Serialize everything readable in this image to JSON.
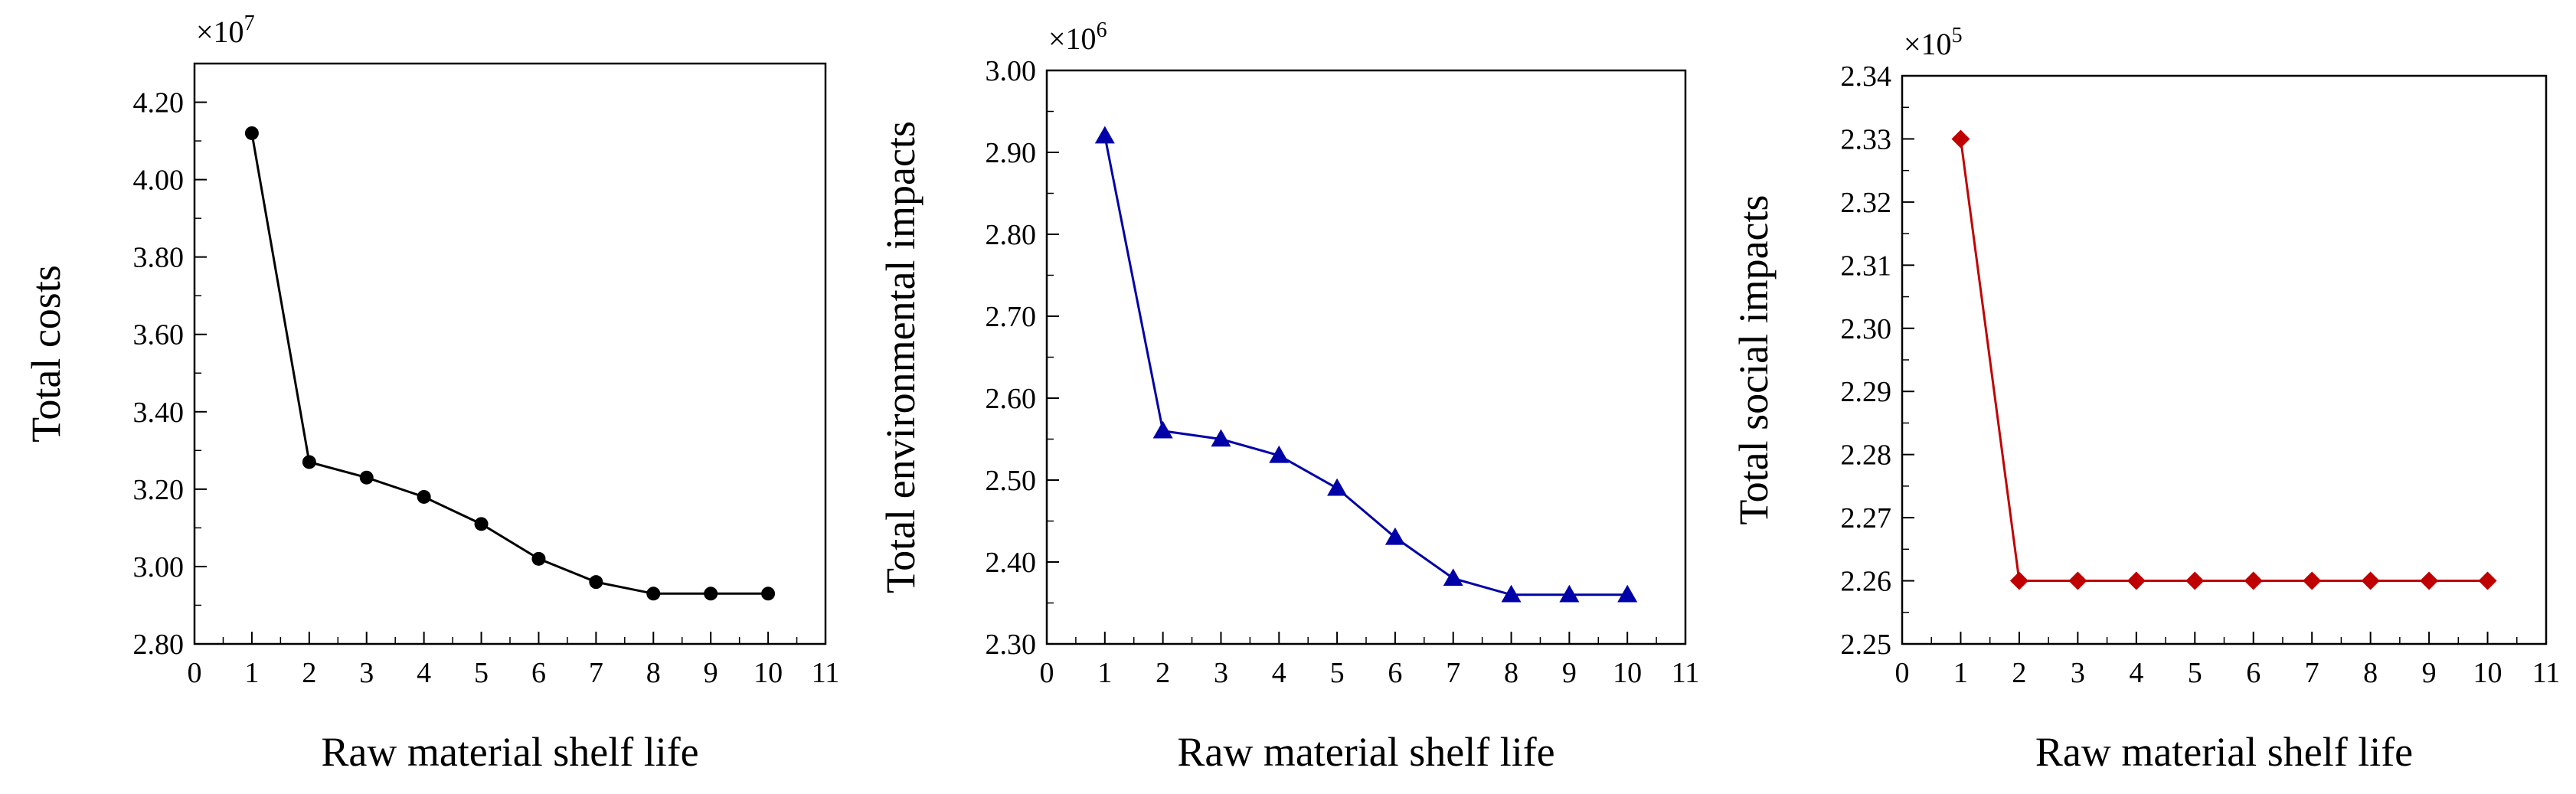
{
  "chart_data": [
    {
      "type": "line",
      "title": "",
      "xlabel": "Raw material shelf life",
      "ylabel": "Total costs",
      "multiplier": {
        "base": "×10",
        "exponent": "7"
      },
      "x": [
        1,
        2,
        3,
        4,
        5,
        6,
        7,
        8,
        9,
        10
      ],
      "series": [
        {
          "name": "Total costs",
          "color": "#000000",
          "marker": "circle",
          "values": [
            4.12,
            3.27,
            3.23,
            3.18,
            3.11,
            3.02,
            2.96,
            2.93,
            2.93,
            2.93
          ]
        }
      ],
      "xlim": [
        0,
        11
      ],
      "ylim": [
        2.8,
        4.3
      ],
      "xticks": [
        0,
        1,
        2,
        3,
        4,
        5,
        6,
        7,
        8,
        9,
        10,
        11
      ],
      "xtick_labels": [
        "0",
        "1",
        "2",
        "3",
        "4",
        "5",
        "6",
        "7",
        "8",
        "9",
        "10",
        "11"
      ],
      "yticks": [
        2.8,
        3.0,
        3.2,
        3.4,
        3.6,
        3.8,
        4.0,
        4.2
      ],
      "ytick_labels": [
        "2.80",
        "3.00",
        "3.20",
        "3.40",
        "3.60",
        "3.80",
        "4.00",
        "4.20"
      ],
      "ytick_minor_step": 0.1
    },
    {
      "type": "line",
      "title": "",
      "xlabel": "Raw material shelf life",
      "ylabel": "Total environmental impacts",
      "multiplier": {
        "base": "×10",
        "exponent": "6"
      },
      "x": [
        1,
        2,
        3,
        4,
        5,
        6,
        7,
        8,
        9,
        10
      ],
      "series": [
        {
          "name": "Total environmental impacts",
          "color": "#0000a8",
          "marker": "triangle",
          "values": [
            2.92,
            2.56,
            2.55,
            2.53,
            2.49,
            2.43,
            2.38,
            2.36,
            2.36,
            2.36
          ]
        }
      ],
      "xlim": [
        0,
        11
      ],
      "ylim": [
        2.3,
        3.0
      ],
      "xticks": [
        0,
        1,
        2,
        3,
        4,
        5,
        6,
        7,
        8,
        9,
        10,
        11
      ],
      "xtick_labels": [
        "0",
        "1",
        "2",
        "3",
        "4",
        "5",
        "6",
        "7",
        "8",
        "9",
        "10",
        "11"
      ],
      "yticks": [
        2.3,
        2.4,
        2.5,
        2.6,
        2.7,
        2.8,
        2.9,
        3.0
      ],
      "ytick_labels": [
        "2.30",
        "2.40",
        "2.50",
        "2.60",
        "2.70",
        "2.80",
        "2.90",
        "3.00"
      ],
      "ytick_minor_step": 0.05
    },
    {
      "type": "line",
      "title": "",
      "xlabel": "Raw material shelf life",
      "ylabel": "Total social impacts",
      "multiplier": {
        "base": "×10",
        "exponent": "5"
      },
      "x": [
        1,
        2,
        3,
        4,
        5,
        6,
        7,
        8,
        9,
        10
      ],
      "series": [
        {
          "name": "Total social impacts",
          "color": "#c00000",
          "marker": "diamond",
          "values": [
            2.33,
            2.26,
            2.26,
            2.26,
            2.26,
            2.26,
            2.26,
            2.26,
            2.26,
            2.26
          ]
        }
      ],
      "xlim": [
        0,
        11
      ],
      "ylim": [
        2.25,
        2.34
      ],
      "xticks": [
        0,
        1,
        2,
        3,
        4,
        5,
        6,
        7,
        8,
        9,
        10,
        11
      ],
      "xtick_labels": [
        "0",
        "1",
        "2",
        "3",
        "4",
        "5",
        "6",
        "7",
        "8",
        "9",
        "10",
        "11"
      ],
      "yticks": [
        2.25,
        2.26,
        2.27,
        2.28,
        2.29,
        2.3,
        2.31,
        2.32,
        2.33,
        2.34
      ],
      "ytick_labels": [
        "2.25",
        "2.26",
        "2.27",
        "2.28",
        "2.29",
        "2.30",
        "2.31",
        "2.32",
        "2.33",
        "2.34"
      ],
      "ytick_minor_step": 0.005
    }
  ]
}
